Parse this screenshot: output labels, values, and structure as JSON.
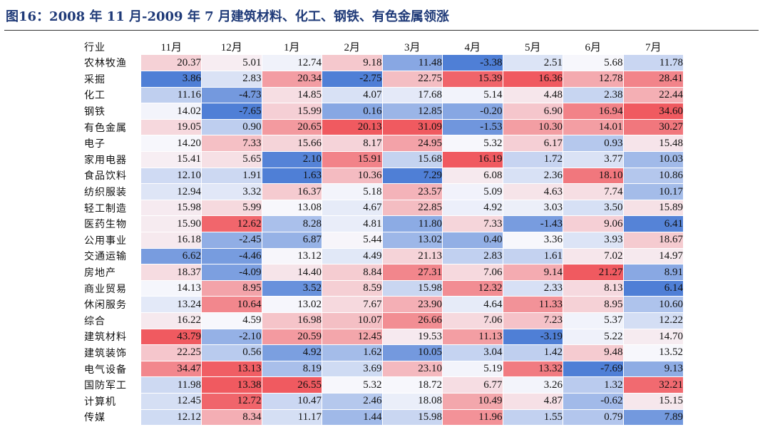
{
  "figure": {
    "title": "图16：2008 年 11 月-2009 年 7 月建筑材料、化工、钢铁、有色金属领涨"
  },
  "colors": {
    "negative": "#4f7fd6",
    "neutral": "#f7f7fc",
    "positive": "#f05a60"
  },
  "chart_data": {
    "type": "heatmap",
    "title": "图16：2008 年 11 月-2009 年 7 月建筑材料、化工、钢铁、有色金属领涨",
    "row_header": "行业",
    "columns": [
      "11月",
      "12月",
      "1月",
      "2月",
      "3月",
      "4月",
      "5月",
      "6月",
      "7月"
    ],
    "rows": [
      {
        "label": "农林牧渔",
        "values": [
          "20.37",
          "5.01",
          "12.74",
          "9.18",
          "11.48",
          "-3.38",
          "2.51",
          "5.68",
          "11.78"
        ]
      },
      {
        "label": "采掘",
        "values": [
          "3.86",
          "2.83",
          "20.34",
          "-2.75",
          "22.75",
          "15.39",
          "16.36",
          "12.78",
          "28.41"
        ]
      },
      {
        "label": "化工",
        "values": [
          "11.16",
          "-4.73",
          "14.85",
          "4.07",
          "17.68",
          "5.14",
          "4.48",
          "2.38",
          "22.44"
        ]
      },
      {
        "label": "钢铁",
        "values": [
          "14.02",
          "-7.65",
          "15.99",
          "0.16",
          "12.85",
          "-0.20",
          "6.90",
          "16.94",
          "34.60"
        ]
      },
      {
        "label": "有色金属",
        "values": [
          "19.05",
          "0.90",
          "20.65",
          "20.13",
          "31.09",
          "-1.53",
          "10.30",
          "14.01",
          "30.27"
        ]
      },
      {
        "label": "电子",
        "values": [
          "14.20",
          "7.33",
          "15.66",
          "8.17",
          "24.95",
          "5.32",
          "6.17",
          "0.93",
          "15.48"
        ]
      },
      {
        "label": "家用电器",
        "values": [
          "15.41",
          "5.65",
          "2.10",
          "15.91",
          "15.68",
          "16.19",
          "1.72",
          "3.77",
          "10.03"
        ]
      },
      {
        "label": "食品饮料",
        "values": [
          "12.10",
          "1.91",
          "1.63",
          "10.36",
          "7.29",
          "6.08",
          "2.36",
          "18.10",
          "10.86"
        ]
      },
      {
        "label": "纺织服装",
        "values": [
          "12.94",
          "3.32",
          "16.37",
          "5.18",
          "23.57",
          "5.09",
          "4.63",
          "7.74",
          "10.17"
        ]
      },
      {
        "label": "轻工制造",
        "values": [
          "15.98",
          "5.99",
          "13.08",
          "4.67",
          "22.85",
          "4.92",
          "3.03",
          "3.50",
          "15.89"
        ]
      },
      {
        "label": "医药生物",
        "values": [
          "15.90",
          "12.62",
          "8.28",
          "4.81",
          "11.80",
          "7.33",
          "-1.43",
          "9.06",
          "6.41"
        ]
      },
      {
        "label": "公用事业",
        "values": [
          "16.18",
          "-2.45",
          "6.87",
          "5.44",
          "13.02",
          "0.40",
          "3.36",
          "3.93",
          "18.67"
        ]
      },
      {
        "label": "交通运输",
        "values": [
          "6.62",
          "-4.46",
          "13.12",
          "4.49",
          "21.13",
          "2.83",
          "1.61",
          "7.02",
          "14.97"
        ]
      },
      {
        "label": "房地产",
        "values": [
          "18.37",
          "-4.09",
          "14.40",
          "8.84",
          "27.31",
          "7.06",
          "9.14",
          "21.27",
          "8.91"
        ]
      },
      {
        "label": "商业贸易",
        "values": [
          "14.13",
          "8.95",
          "3.52",
          "8.59",
          "15.98",
          "12.32",
          "2.33",
          "8.13",
          "6.14"
        ]
      },
      {
        "label": "休闲服务",
        "values": [
          "13.24",
          "10.64",
          "13.02",
          "7.67",
          "23.90",
          "4.64",
          "11.33",
          "8.95",
          "10.60"
        ]
      },
      {
        "label": "综合",
        "values": [
          "16.22",
          "4.59",
          "16.98",
          "10.07",
          "26.66",
          "7.06",
          "7.23",
          "5.37",
          "12.22"
        ]
      },
      {
        "label": "建筑材料",
        "values": [
          "43.79",
          "-2.10",
          "20.59",
          "12.45",
          "19.53",
          "11.13",
          "-3.19",
          "5.22",
          "14.70"
        ]
      },
      {
        "label": "建筑装饰",
        "values": [
          "22.25",
          "0.56",
          "4.92",
          "1.62",
          "10.05",
          "3.04",
          "1.42",
          "9.48",
          "13.52"
        ]
      },
      {
        "label": "电气设备",
        "values": [
          "34.47",
          "13.13",
          "8.19",
          "3.69",
          "23.10",
          "5.19",
          "13.32",
          "-7.69",
          "9.13"
        ]
      },
      {
        "label": "国防军工",
        "values": [
          "11.98",
          "13.38",
          "26.55",
          "5.32",
          "18.72",
          "6.77",
          "3.26",
          "1.32",
          "32.21"
        ]
      },
      {
        "label": "计算机",
        "values": [
          "12.45",
          "12.72",
          "10.47",
          "2.46",
          "18.08",
          "10.49",
          "4.87",
          "-0.62",
          "15.15"
        ]
      },
      {
        "label": "传媒",
        "values": [
          "12.12",
          "8.34",
          "11.17",
          "1.44",
          "15.98",
          "11.96",
          "1.55",
          "0.79",
          "7.89"
        ]
      }
    ],
    "color_scale": "diverging, per column: blue = low, red = high"
  }
}
